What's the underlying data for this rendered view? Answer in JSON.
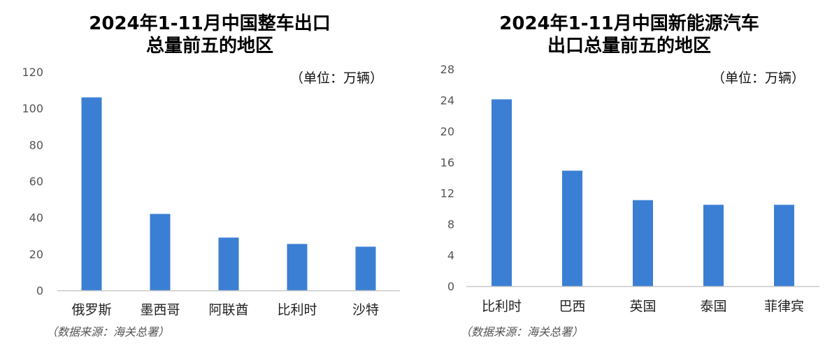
{
  "chart_data": [
    {
      "type": "bar",
      "title_lines": [
        "2024年1-11月中国整车出口",
        "总量前五的地区"
      ],
      "unit": "（单位：万辆）",
      "source": "（数据来源：海关总署）",
      "categories": [
        "俄罗斯",
        "墨西哥",
        "阿联酋",
        "比利时",
        "沙特"
      ],
      "values": [
        106,
        42,
        29,
        25.5,
        24
      ],
      "ylim": [
        0,
        120
      ],
      "yticks": [
        "0",
        "20",
        "40",
        "60",
        "80",
        "100",
        "120"
      ],
      "grid": false,
      "bar_color": "#3b7fd4"
    },
    {
      "type": "bar",
      "title_lines": [
        "2024年1-11月中国新能源汽车",
        "出口总量前五的地区"
      ],
      "unit": "（单位：万辆）",
      "source": "（数据来源：海关总署）",
      "categories": [
        "比利时",
        "巴西",
        "英国",
        "泰国",
        "菲律宾"
      ],
      "values": [
        24.1,
        14.9,
        11.1,
        10.5,
        10.5
      ],
      "ylim": [
        0,
        28
      ],
      "yticks": [
        "0",
        "4",
        "8",
        "12",
        "16",
        "20",
        "24",
        "28"
      ],
      "grid": false,
      "bar_color": "#3b7fd4"
    }
  ]
}
